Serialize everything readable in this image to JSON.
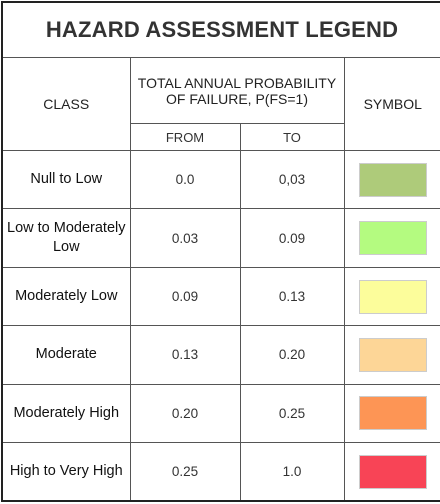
{
  "header": {
    "title": "HAZARD ASSESSMENT LEGEND"
  },
  "table": {
    "columns": {
      "class": "CLASS",
      "probability": "TOTAL ANNUAL PROBABILITY OF FAILURE, P(FS=1)",
      "from": "FROM",
      "to": "TO",
      "symbol": "SYMBOL"
    },
    "rows": [
      {
        "class": "Null to Low",
        "from": "0.0",
        "to": "0,03",
        "color": "#aecb7a"
      },
      {
        "class": "Low to Moderately Low",
        "from": "0.03",
        "to": "0.09",
        "color": "#b4fb80"
      },
      {
        "class": "Moderately Low",
        "from": "0.09",
        "to": "0.13",
        "color": "#fcfd9b"
      },
      {
        "class": "Moderate",
        "from": "0.13",
        "to": "0.20",
        "color": "#fdd697"
      },
      {
        "class": "Moderately High",
        "from": "0.20",
        "to": "0.25",
        "color": "#fd9555"
      },
      {
        "class": "High to Very High",
        "from": "0.25",
        "to": "1.0",
        "color": "#f84456"
      }
    ]
  }
}
